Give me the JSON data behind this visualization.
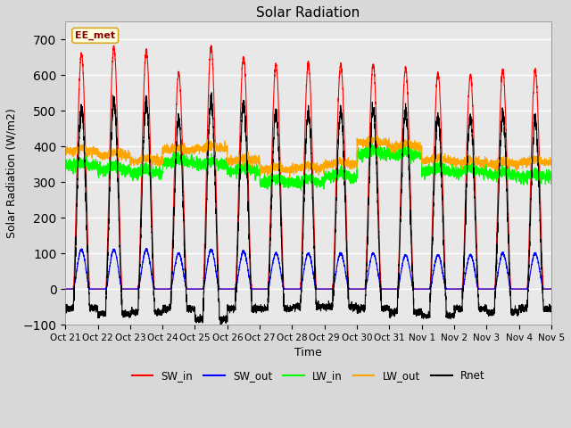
{
  "title": "Solar Radiation",
  "xlabel": "Time",
  "ylabel": "Solar Radiation (W/m2)",
  "ylim": [
    -100,
    750
  ],
  "yticks": [
    -100,
    0,
    100,
    200,
    300,
    400,
    500,
    600,
    700
  ],
  "xtick_labels": [
    "Oct 21",
    "Oct 22",
    "Oct 23",
    "Oct 24",
    "Oct 25",
    "Oct 26",
    "Oct 27",
    "Oct 28",
    "Oct 29",
    "Oct 30",
    "Oct 31",
    "Nov 1",
    "Nov 2",
    "Nov 3",
    "Nov 4",
    "Nov 5"
  ],
  "legend_entries": [
    "SW_in",
    "SW_out",
    "LW_in",
    "LW_out",
    "Rnet"
  ],
  "legend_colors": [
    "red",
    "blue",
    "green",
    "orange",
    "black"
  ],
  "watermark": "EE_met",
  "fig_bg": "#d8d8d8",
  "plot_bg": "#e8e8e8",
  "n_days": 15,
  "SW_in_peaks": [
    660,
    680,
    670,
    605,
    680,
    650,
    630,
    635,
    630,
    630,
    620,
    605,
    600,
    615,
    615
  ],
  "SW_out_peaks": [
    110,
    110,
    110,
    100,
    110,
    105,
    100,
    100,
    100,
    100,
    95,
    95,
    95,
    100,
    100
  ],
  "LW_in_base": [
    345,
    335,
    325,
    355,
    350,
    330,
    300,
    300,
    315,
    380,
    375,
    330,
    330,
    320,
    315
  ],
  "LW_out_base": [
    385,
    375,
    360,
    390,
    395,
    360,
    335,
    340,
    350,
    410,
    400,
    360,
    355,
    350,
    355
  ],
  "Rnet_night": [
    -55,
    -70,
    -65,
    -55,
    -85,
    -55,
    -55,
    -50,
    -50,
    -55,
    -65,
    -75,
    -55,
    -65,
    -55
  ]
}
